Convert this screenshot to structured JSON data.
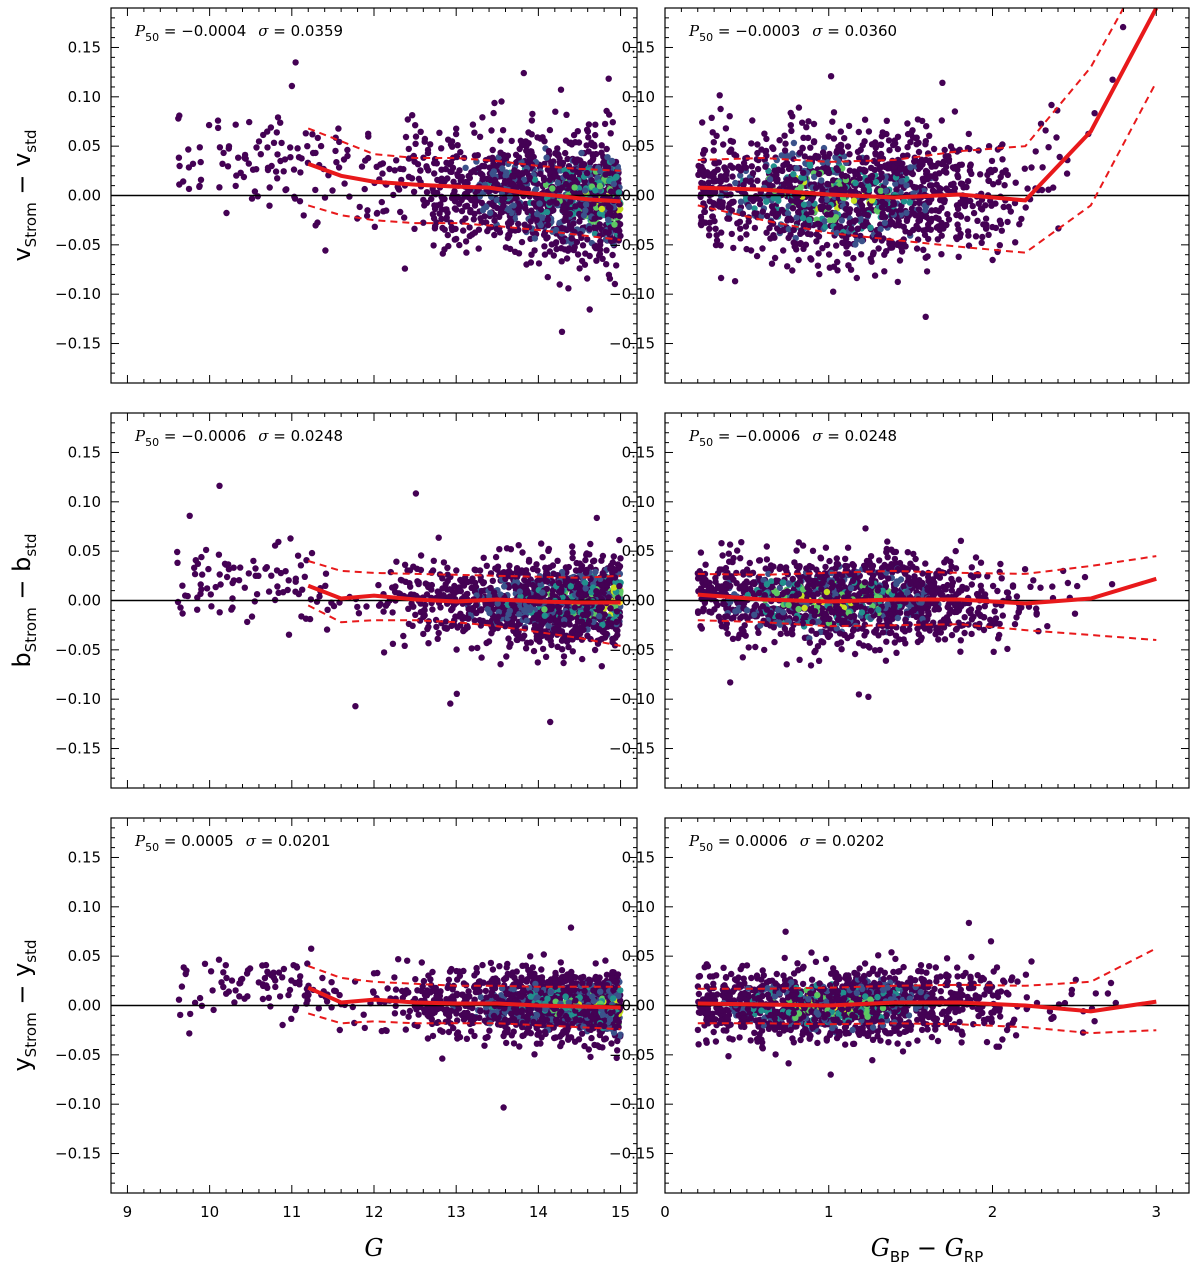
{
  "chart_data": {
    "type": "scatter",
    "description": "Hexbin density of residuals of Stromgren photometry vs standard, with running median (solid red) and percentile bands (dashed red)",
    "columns": [
      {
        "xkey": "G",
        "xlim": [
          8.8,
          15.2
        ],
        "xticks": [
          9,
          10,
          11,
          12,
          13,
          14,
          15
        ]
      },
      {
        "xkey": "BPRP",
        "xlim": [
          0.0,
          3.2
        ],
        "xticks": [
          0,
          1,
          2,
          3
        ]
      }
    ],
    "xlabels": {
      "left": {
        "italic": "G",
        "sub": ""
      },
      "right": {
        "a": "G",
        "a_sub": "BP",
        "mid": " − ",
        "b": "G",
        "b_sub": "RP"
      }
    },
    "ylim": [
      -0.19,
      0.19
    ],
    "yticks": [
      -0.15,
      -0.1,
      -0.05,
      0.0,
      0.05,
      0.1,
      0.15
    ],
    "ytick_labels": [
      "−0.15",
      "−0.10",
      "−0.05",
      "0.00",
      "0.05",
      "0.10",
      "0.15"
    ],
    "rows": [
      {
        "ylabel": {
          "a": "v",
          "a_sub": "Strom",
          "mid": " − ",
          "b": "v",
          "b_sub": "std"
        },
        "spread": 0.036,
        "panels": [
          {
            "ann_prefix": "P",
            "ann_sub": "50",
            "ann_val": " = −0.0004",
            "ann_sigma": "σ",
            "ann_sval": " = 0.0359",
            "median": {
              "x": [
                11.2,
                11.6,
                12.0,
                12.5,
                13.0,
                13.4,
                13.8,
                14.2,
                14.6,
                15.0
              ],
              "y": [
                0.032,
                0.02,
                0.014,
                0.011,
                0.009,
                0.008,
                0.003,
                0.0,
                -0.004,
                -0.006
              ]
            },
            "upper": {
              "x": [
                11.2,
                11.6,
                12.0,
                12.5,
                13.0,
                13.5,
                14.0,
                14.5,
                15.0
              ],
              "y": [
                0.068,
                0.055,
                0.042,
                0.038,
                0.038,
                0.035,
                0.03,
                0.027,
                0.025
              ]
            },
            "lower": {
              "x": [
                11.2,
                11.6,
                12.0,
                12.5,
                13.0,
                13.5,
                14.0,
                14.5,
                15.0
              ],
              "y": [
                -0.01,
                -0.02,
                -0.025,
                -0.028,
                -0.028,
                -0.031,
                -0.035,
                -0.04,
                -0.045
              ]
            }
          },
          {
            "ann_prefix": "P",
            "ann_sub": "50",
            "ann_val": " = −0.0003",
            "ann_sigma": "σ",
            "ann_sval": " = 0.0360",
            "median": {
              "x": [
                0.2,
                0.6,
                1.0,
                1.4,
                1.8,
                2.2,
                2.6,
                3.0
              ],
              "y": [
                0.008,
                0.006,
                0.001,
                -0.002,
                0.001,
                -0.005,
                0.065,
                0.19
              ]
            },
            "upper": {
              "x": [
                0.2,
                0.6,
                1.0,
                1.4,
                1.8,
                2.2,
                2.6,
                2.8
              ],
              "y": [
                0.036,
                0.038,
                0.034,
                0.036,
                0.045,
                0.05,
                0.13,
                0.19
              ]
            },
            "lower": {
              "x": [
                0.2,
                0.6,
                1.0,
                1.4,
                1.8,
                2.2,
                2.6,
                3.0
              ],
              "y": [
                -0.01,
                -0.025,
                -0.038,
                -0.045,
                -0.052,
                -0.058,
                -0.01,
                0.115
              ]
            }
          }
        ]
      },
      {
        "ylabel": {
          "a": "b",
          "a_sub": "Strom",
          "mid": " − ",
          "b": "b",
          "b_sub": "std"
        },
        "spread": 0.025,
        "panels": [
          {
            "ann_prefix": "P",
            "ann_sub": "50",
            "ann_val": " = −0.0006",
            "ann_sigma": "σ",
            "ann_sval": " = 0.0248",
            "median": {
              "x": [
                11.2,
                11.6,
                12.0,
                12.5,
                13.0,
                13.5,
                14.0,
                14.5,
                15.0
              ],
              "y": [
                0.015,
                0.002,
                0.005,
                0.001,
                -0.001,
                0.001,
                -0.001,
                -0.002,
                -0.002
              ]
            },
            "upper": {
              "x": [
                11.2,
                11.6,
                12.0,
                12.5,
                13.0,
                13.5,
                14.0,
                14.5,
                15.0
              ],
              "y": [
                0.04,
                0.03,
                0.028,
                0.027,
                0.026,
                0.025,
                0.024,
                0.023,
                0.025
              ]
            },
            "lower": {
              "x": [
                11.2,
                11.6,
                12.0,
                12.5,
                13.0,
                13.5,
                14.0,
                14.5,
                15.0
              ],
              "y": [
                -0.005,
                -0.022,
                -0.02,
                -0.02,
                -0.022,
                -0.026,
                -0.032,
                -0.038,
                -0.046
              ]
            }
          },
          {
            "ann_prefix": "P",
            "ann_sub": "50",
            "ann_val": " = −0.0006",
            "ann_sigma": "σ",
            "ann_sval": " = 0.0248",
            "median": {
              "x": [
                0.2,
                0.6,
                1.0,
                1.4,
                1.8,
                2.2,
                2.6,
                3.0
              ],
              "y": [
                0.006,
                0.001,
                -0.001,
                0.001,
                0.001,
                -0.003,
                0.002,
                0.022
              ]
            },
            "upper": {
              "x": [
                0.2,
                0.6,
                1.0,
                1.4,
                1.8,
                2.2,
                2.6,
                3.0
              ],
              "y": [
                0.027,
                0.026,
                0.028,
                0.03,
                0.028,
                0.027,
                0.035,
                0.045
              ]
            },
            "lower": {
              "x": [
                0.2,
                0.6,
                1.0,
                1.4,
                1.8,
                2.2,
                2.6,
                3.0
              ],
              "y": [
                -0.02,
                -0.022,
                -0.026,
                -0.025,
                -0.024,
                -0.03,
                -0.035,
                -0.04
              ]
            }
          }
        ]
      },
      {
        "ylabel": {
          "a": "y",
          "a_sub": "Strom",
          "mid": " − ",
          "b": "y",
          "b_sub": "std"
        },
        "spread": 0.02,
        "panels": [
          {
            "ann_prefix": "P",
            "ann_sub": "50",
            "ann_val": " = 0.0005",
            "ann_sigma": "σ",
            "ann_sval": " = 0.0201",
            "median": {
              "x": [
                11.2,
                11.6,
                12.0,
                12.5,
                13.0,
                13.5,
                14.0,
                14.5,
                15.0
              ],
              "y": [
                0.018,
                0.003,
                0.006,
                0.003,
                0.002,
                0.002,
                0.0,
                -0.001,
                -0.002
              ]
            },
            "upper": {
              "x": [
                11.2,
                11.6,
                12.0,
                12.5,
                13.0,
                13.5,
                14.0,
                14.5,
                15.0
              ],
              "y": [
                0.04,
                0.028,
                0.024,
                0.022,
                0.02,
                0.02,
                0.019,
                0.019,
                0.019
              ]
            },
            "lower": {
              "x": [
                11.2,
                11.6,
                12.0,
                12.5,
                13.0,
                13.5,
                14.0,
                14.5,
                15.0
              ],
              "y": [
                -0.008,
                -0.018,
                -0.016,
                -0.018,
                -0.018,
                -0.018,
                -0.02,
                -0.022,
                -0.024
              ]
            }
          },
          {
            "ann_prefix": "P",
            "ann_sub": "50",
            "ann_val": " = 0.0006",
            "ann_sigma": "σ",
            "ann_sval": " = 0.0202",
            "median": {
              "x": [
                0.2,
                0.6,
                1.0,
                1.4,
                1.8,
                2.2,
                2.6,
                3.0
              ],
              "y": [
                0.002,
                0.001,
                0.0,
                0.003,
                0.003,
                0.0,
                -0.006,
                0.004
              ]
            },
            "upper": {
              "x": [
                0.2,
                0.6,
                1.0,
                1.4,
                1.8,
                2.2,
                2.6,
                3.0
              ],
              "y": [
                0.017,
                0.017,
                0.018,
                0.02,
                0.021,
                0.02,
                0.024,
                0.058
              ]
            },
            "lower": {
              "x": [
                0.2,
                0.6,
                1.0,
                1.4,
                1.8,
                2.2,
                2.6,
                3.0
              ],
              "y": [
                -0.018,
                -0.018,
                -0.019,
                -0.018,
                -0.019,
                -0.022,
                -0.028,
                -0.025
              ]
            }
          }
        ]
      }
    ],
    "colors": {
      "median": "#e8191b",
      "band": "#e8191b",
      "zero_line": "#000000",
      "density": [
        "#440154",
        "#3b528b",
        "#21908d",
        "#5dc863",
        "#c7e020",
        "#fde725"
      ]
    }
  }
}
